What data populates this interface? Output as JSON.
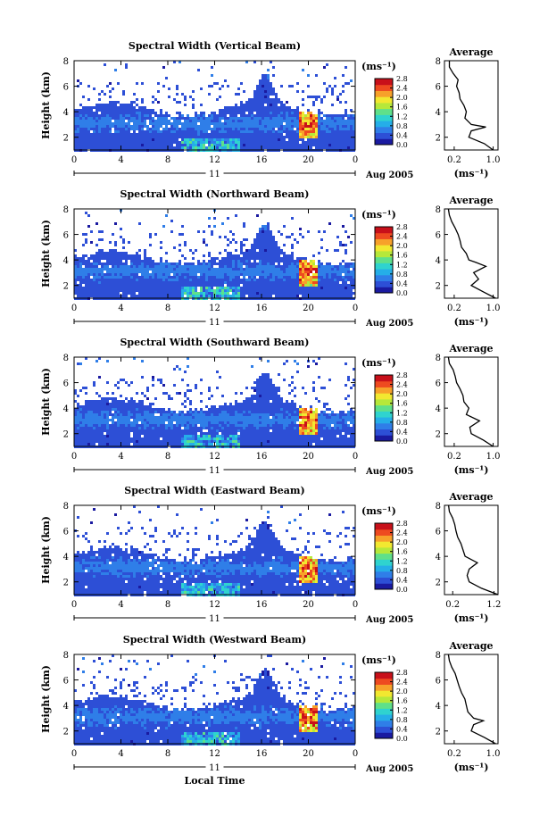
{
  "colors": {
    "colormap": [
      "#1a1aa0",
      "#2d4fd6",
      "#2f7ee8",
      "#25aee8",
      "#2fd3cf",
      "#5fe08a",
      "#b6e83a",
      "#f2e830",
      "#f7a12a",
      "#ee4a20",
      "#c8101a"
    ],
    "grid": "#000000",
    "background": "#ffffff"
  },
  "shared": {
    "x_ticks": [
      "0",
      "4",
      "8",
      "12",
      "16",
      "20",
      "0"
    ],
    "y_ticks": [
      "2",
      "4",
      "6",
      "8"
    ],
    "date_day": "11",
    "date_month": "Aug 2005",
    "ylabel": "Height (km)",
    "colorbar_label": "(ms⁻¹)",
    "avg_title": "Average",
    "avg_xlabel": "(ms⁻¹)",
    "xlabel": "Local Time"
  },
  "chart_data": [
    {
      "type": "heatmap",
      "title": "Spectral Width (Vertical Beam)",
      "xlim": [
        0,
        24
      ],
      "ylim": [
        1,
        8
      ],
      "colorbar_ticks": [
        "2.8",
        "2.4",
        "2.0",
        "1.6",
        "1.2",
        "0.8",
        "0.4",
        "0.0"
      ],
      "colorbar_range": [
        0,
        2.8
      ],
      "avg_ticks": [
        "0.2",
        "1.0"
      ],
      "avg_xlim": [
        0,
        1.1
      ],
      "avg_profile": {
        "height": [
          1.0,
          1.5,
          2.0,
          2.5,
          2.8,
          3.0,
          3.5,
          4.0,
          4.5,
          5.0,
          5.5,
          6.0,
          6.5,
          7.0,
          7.5,
          8.0
        ],
        "width": [
          1.0,
          0.82,
          0.5,
          0.55,
          0.85,
          0.55,
          0.42,
          0.45,
          0.4,
          0.32,
          0.3,
          0.25,
          0.28,
          0.18,
          0.1,
          0.1
        ]
      }
    },
    {
      "type": "heatmap",
      "title": "Spectral Width (Northward Beam)",
      "xlim": [
        0,
        24
      ],
      "ylim": [
        1,
        8
      ],
      "colorbar_ticks": [
        "2.8",
        "2.4",
        "2.0",
        "1.6",
        "1.2",
        "0.8",
        "0.4",
        "0.0"
      ],
      "colorbar_range": [
        0,
        2.8
      ],
      "avg_ticks": [
        "0.2",
        "1.0"
      ],
      "avg_xlim": [
        0,
        1.1
      ],
      "avg_profile": {
        "height": [
          1.0,
          1.5,
          2.0,
          2.5,
          3.0,
          3.5,
          3.8,
          4.0,
          4.5,
          5.0,
          5.5,
          6.0,
          6.5,
          7.0,
          7.5,
          8.0
        ],
        "width": [
          1.05,
          0.8,
          0.55,
          0.7,
          0.6,
          0.85,
          0.65,
          0.5,
          0.45,
          0.35,
          0.32,
          0.28,
          0.22,
          0.15,
          0.1,
          0.08
        ]
      }
    },
    {
      "type": "heatmap",
      "title": "Spectral Width (Southward Beam)",
      "xlim": [
        0,
        24
      ],
      "ylim": [
        1,
        8
      ],
      "colorbar_ticks": [
        "2.8",
        "2.4",
        "2.0",
        "1.6",
        "1.2",
        "0.8",
        "0.4",
        "0.0"
      ],
      "colorbar_range": [
        0,
        2.8
      ],
      "avg_ticks": [
        "0.2",
        "1.0"
      ],
      "avg_xlim": [
        0,
        1.1
      ],
      "avg_profile": {
        "height": [
          1.0,
          1.5,
          2.0,
          2.5,
          3.0,
          3.5,
          4.0,
          4.5,
          5.0,
          5.5,
          6.0,
          6.5,
          7.0,
          7.5,
          8.0
        ],
        "width": [
          1.0,
          0.8,
          0.55,
          0.52,
          0.72,
          0.45,
          0.5,
          0.4,
          0.38,
          0.32,
          0.25,
          0.22,
          0.18,
          0.1,
          0.08
        ]
      }
    },
    {
      "type": "heatmap",
      "title": "Spectral Width (Eastward Beam)",
      "xlim": [
        0,
        24
      ],
      "ylim": [
        1,
        8
      ],
      "colorbar_ticks": [
        "2.8",
        "2.4",
        "2.0",
        "1.6",
        "1.2",
        "0.8",
        "0.4",
        "0.0"
      ],
      "colorbar_range": [
        0,
        2.8
      ],
      "avg_ticks": [
        "0.2",
        "1.2"
      ],
      "avg_xlim": [
        0,
        1.3
      ],
      "avg_profile": {
        "height": [
          1.0,
          1.5,
          2.0,
          2.5,
          3.0,
          3.5,
          4.0,
          4.5,
          5.0,
          5.5,
          6.0,
          6.5,
          7.0,
          7.5,
          8.0
        ],
        "width": [
          1.3,
          0.9,
          0.6,
          0.55,
          0.6,
          0.8,
          0.5,
          0.45,
          0.4,
          0.32,
          0.28,
          0.25,
          0.2,
          0.12,
          0.1
        ]
      }
    },
    {
      "type": "heatmap",
      "title": "Spectral Width (Westward Beam)",
      "xlim": [
        0,
        24
      ],
      "ylim": [
        1,
        8
      ],
      "colorbar_ticks": [
        "2.8",
        "2.4",
        "2.0",
        "1.6",
        "1.2",
        "0.8",
        "0.4",
        "0.0"
      ],
      "colorbar_range": [
        0,
        2.8
      ],
      "avg_ticks": [
        "0.2",
        "1.0"
      ],
      "avg_xlim": [
        0,
        1.1
      ],
      "avg_profile": {
        "height": [
          1.0,
          1.5,
          2.0,
          2.5,
          2.8,
          3.0,
          3.5,
          4.0,
          4.5,
          5.0,
          5.5,
          6.0,
          6.5,
          7.0,
          7.5,
          8.0
        ],
        "width": [
          1.05,
          0.82,
          0.55,
          0.6,
          0.8,
          0.6,
          0.48,
          0.45,
          0.42,
          0.35,
          0.3,
          0.26,
          0.22,
          0.15,
          0.1,
          0.08
        ]
      }
    }
  ]
}
